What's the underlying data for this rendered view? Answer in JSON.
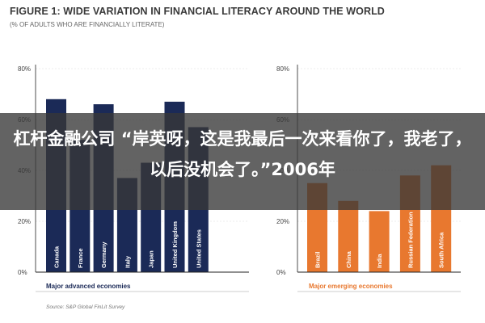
{
  "header": {
    "title": "FIGURE 1: WIDE VARIATION IN FINANCIAL LITERACY AROUND THE WORLD",
    "subtitle": "(% OF ADULTS WHO ARE FINANCIALLY LITERATE)"
  },
  "source": "Source: S&P Global FinLit Survey",
  "overlay": {
    "text": "杠杆金融公司 “岸英呀，这是我最后一次来看你了，我老了，以后没机会了。”2006年"
  },
  "colors": {
    "advanced": "#1b2a57",
    "emerging": "#e8782f",
    "axis": "#222222",
    "grid": "#d9d9d9"
  },
  "chart_data": [
    {
      "type": "bar",
      "categories": [
        "Canada",
        "France",
        "Germany",
        "Italy",
        "Japan",
        "United Kingdom",
        "United States"
      ],
      "values": [
        68,
        52,
        66,
        37,
        43,
        67,
        57
      ],
      "ylim": [
        0,
        80
      ],
      "yticks": [
        "0%",
        "20%",
        "40%",
        "60%",
        "80%"
      ],
      "xlabel": "Major advanced economies",
      "color": "#1b2a57"
    },
    {
      "type": "bar",
      "categories": [
        "Brazil",
        "China",
        "India",
        "Russian Federation",
        "South Africa"
      ],
      "values": [
        35,
        28,
        24,
        38,
        42
      ],
      "ylim": [
        0,
        80
      ],
      "yticks": [
        "0%",
        "20%",
        "40%",
        "60%",
        "80%"
      ],
      "xlabel": "Major emerging economies",
      "color": "#e8782f"
    }
  ]
}
